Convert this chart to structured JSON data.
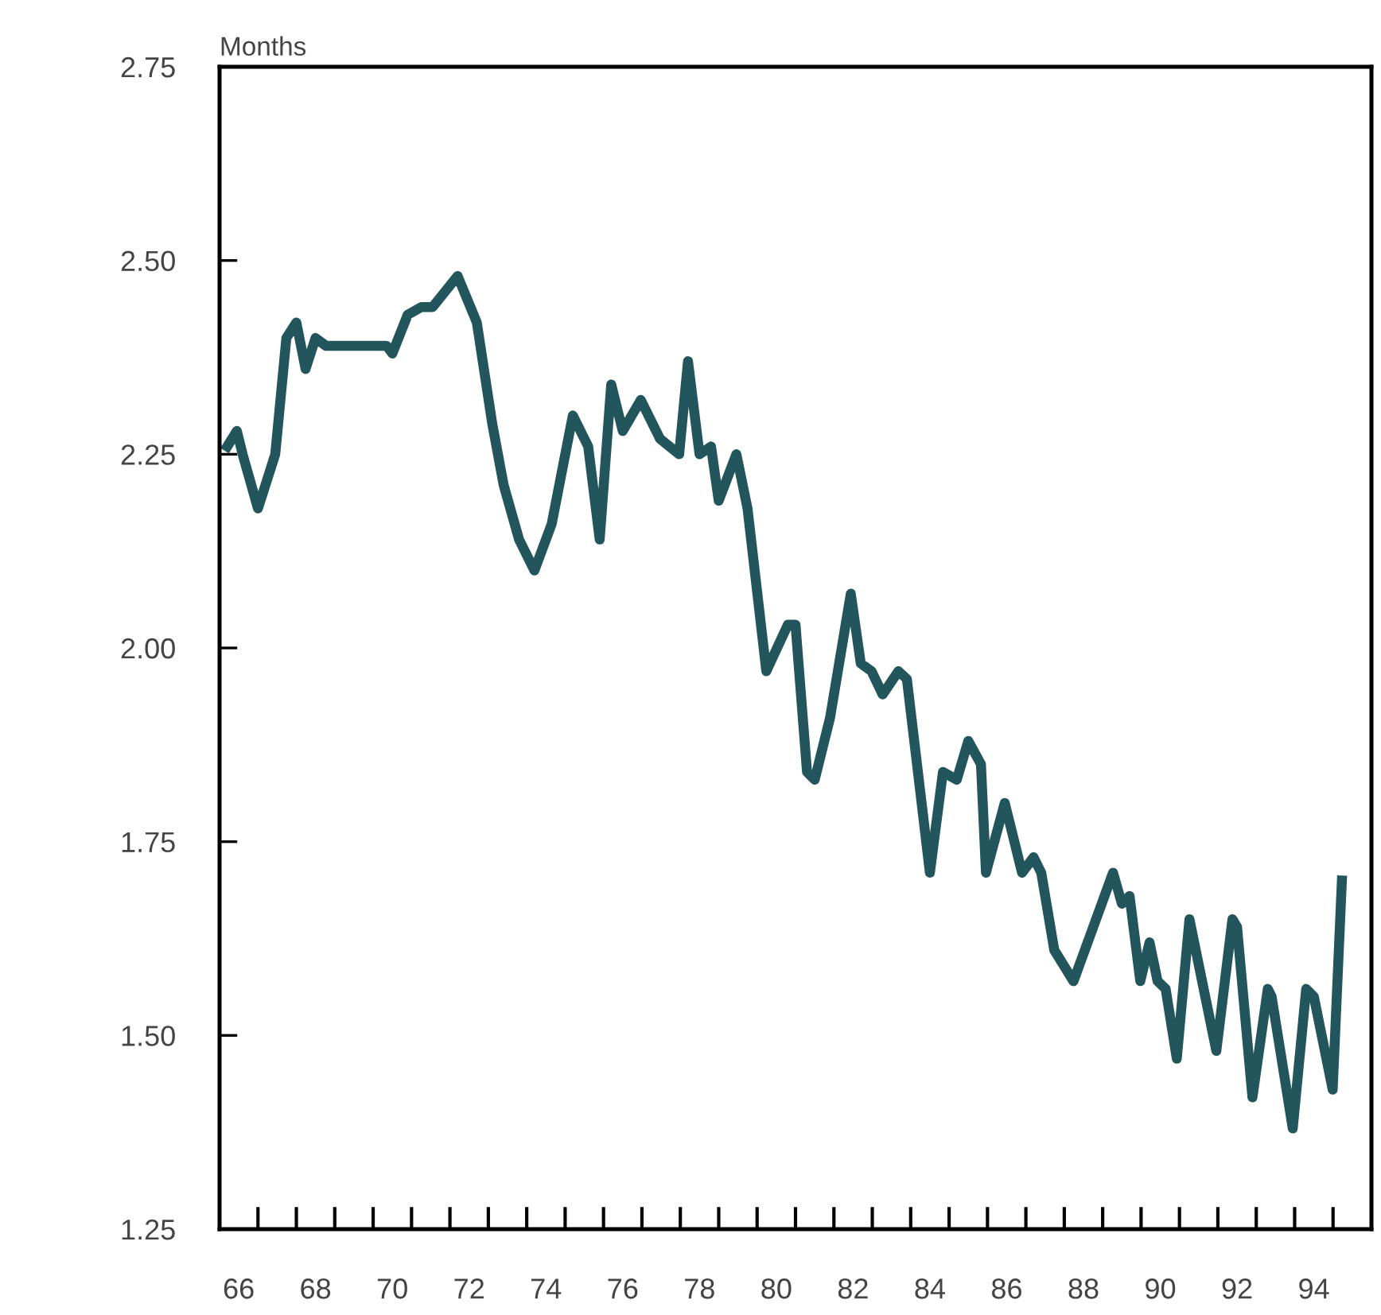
{
  "chart_data": {
    "type": "line",
    "ylabel": "Months",
    "x": [
      66.2,
      66.45,
      66.6,
      67.0,
      67.45,
      67.74,
      68.0,
      68.24,
      68.5,
      68.77,
      70.35,
      70.5,
      70.9,
      71.26,
      71.55,
      72.2,
      72.7,
      73.1,
      73.4,
      73.8,
      74.2,
      74.65,
      75.2,
      75.6,
      75.9,
      76.2,
      76.5,
      76.97,
      77.47,
      77.97,
      78.2,
      78.5,
      78.8,
      79.0,
      79.46,
      79.75,
      80.24,
      80.8,
      81.0,
      81.3,
      81.5,
      81.9,
      82.44,
      82.7,
      82.98,
      83.27,
      83.68,
      83.9,
      84.5,
      84.84,
      85.2,
      85.5,
      85.83,
      85.96,
      86.45,
      86.9,
      87.2,
      87.4,
      87.74,
      88.24,
      89.27,
      89.5,
      89.7,
      89.98,
      90.22,
      90.43,
      90.64,
      90.93,
      91.26,
      91.96,
      92.38,
      92.5,
      92.9,
      93.3,
      93.4,
      93.95,
      94.3,
      94.5,
      94.99,
      95.23
    ],
    "series": [
      {
        "color": "#23555c",
        "values": [
          2.26,
          2.28,
          2.25,
          2.18,
          2.25,
          2.4,
          2.42,
          2.36,
          2.4,
          2.39,
          2.39,
          2.38,
          2.43,
          2.44,
          2.44,
          2.48,
          2.42,
          2.29,
          2.21,
          2.14,
          2.1,
          2.16,
          2.3,
          2.26,
          2.14,
          2.34,
          2.28,
          2.32,
          2.27,
          2.25,
          2.37,
          2.25,
          2.26,
          2.19,
          2.25,
          2.18,
          1.97,
          2.03,
          2.03,
          1.84,
          1.83,
          1.91,
          2.07,
          1.98,
          1.97,
          1.94,
          1.97,
          1.96,
          1.71,
          1.84,
          1.83,
          1.88,
          1.85,
          1.71,
          1.8,
          1.71,
          1.73,
          1.71,
          1.61,
          1.57,
          1.71,
          1.67,
          1.68,
          1.57,
          1.62,
          1.57,
          1.56,
          1.47,
          1.65,
          1.48,
          1.65,
          1.64,
          1.42,
          1.56,
          1.55,
          1.38,
          1.56,
          1.55,
          1.43,
          1.7
        ]
      }
    ],
    "xlim": [
      66,
      96
    ],
    "xticks": [
      {
        "value": 66.5,
        "label": "66"
      },
      {
        "value": 68.5,
        "label": "68"
      },
      {
        "value": 70.5,
        "label": "70"
      },
      {
        "value": 72.5,
        "label": "72"
      },
      {
        "value": 74.5,
        "label": "74"
      },
      {
        "value": 76.5,
        "label": "76"
      },
      {
        "value": 78.5,
        "label": "78"
      },
      {
        "value": 80.5,
        "label": "80"
      },
      {
        "value": 82.5,
        "label": "82"
      },
      {
        "value": 84.5,
        "label": "84"
      },
      {
        "value": 86.5,
        "label": "86"
      },
      {
        "value": 88.5,
        "label": "88"
      },
      {
        "value": 90.5,
        "label": "90"
      },
      {
        "value": 92.5,
        "label": "92"
      },
      {
        "value": 94.5,
        "label": "94"
      },
      {
        "value": 67,
        "label": null
      },
      {
        "value": 68,
        "label": null
      },
      {
        "value": 69,
        "label": null
      },
      {
        "value": 70,
        "label": null
      },
      {
        "value": 71,
        "label": null
      },
      {
        "value": 72,
        "label": null
      },
      {
        "value": 73,
        "label": null
      },
      {
        "value": 74,
        "label": null
      },
      {
        "value": 75,
        "label": null
      },
      {
        "value": 76,
        "label": null
      },
      {
        "value": 77,
        "label": null
      },
      {
        "value": 78,
        "label": null
      },
      {
        "value": 79,
        "label": null
      },
      {
        "value": 80,
        "label": null
      },
      {
        "value": 81,
        "label": null
      },
      {
        "value": 82,
        "label": null
      },
      {
        "value": 83,
        "label": null
      },
      {
        "value": 84,
        "label": null
      },
      {
        "value": 85,
        "label": null
      },
      {
        "value": 86,
        "label": null
      },
      {
        "value": 87,
        "label": null
      },
      {
        "value": 88,
        "label": null
      },
      {
        "value": 89,
        "label": null
      },
      {
        "value": 90,
        "label": null
      },
      {
        "value": 91,
        "label": null
      },
      {
        "value": 92,
        "label": null
      },
      {
        "value": 93,
        "label": null
      },
      {
        "value": 94,
        "label": null
      },
      {
        "value": 95,
        "label": null
      }
    ],
    "ylim": [
      1.25,
      2.75
    ],
    "yticks": [
      {
        "value": 1.25,
        "label": "1.25"
      },
      {
        "value": 1.5,
        "label": "1.50"
      },
      {
        "value": 1.75,
        "label": "1.75"
      },
      {
        "value": 2.0,
        "label": "2.00"
      },
      {
        "value": 2.25,
        "label": "2.25"
      },
      {
        "value": 2.5,
        "label": "2.50"
      },
      {
        "value": 2.75,
        "label": "2.75"
      }
    ],
    "grid": false,
    "marker": "none",
    "line_style": "solid"
  }
}
